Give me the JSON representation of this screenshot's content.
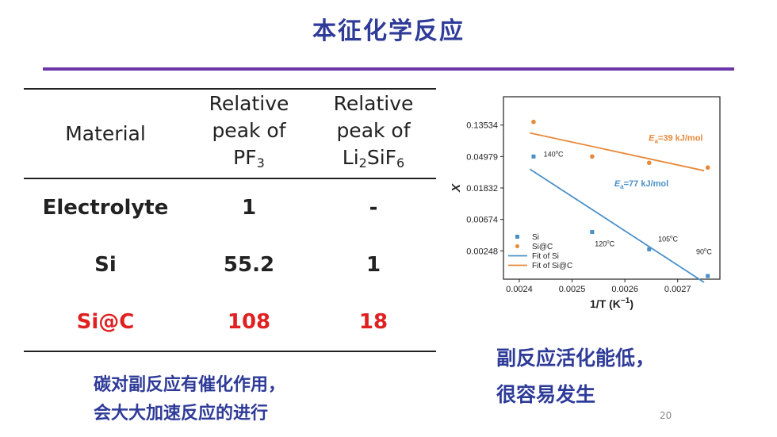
{
  "slide": {
    "title": "本征化学反应",
    "page_number": "20",
    "colors": {
      "title": "#2e3b98",
      "rule": "#6b36a7",
      "highlight": "#e02020"
    }
  },
  "table": {
    "headers": [
      {
        "lines": [
          "Material"
        ]
      },
      {
        "lines": [
          "Relative",
          "peak of",
          "PF",
          "3"
        ]
      },
      {
        "lines": [
          "Relative",
          "peak of",
          "Li",
          "2",
          "SiF",
          "6"
        ]
      }
    ],
    "rows": [
      {
        "material": "Electrolyte",
        "pf3": "1",
        "li2sif6": "-"
      },
      {
        "material": "Si",
        "pf3": "55.2",
        "li2sif6": "1"
      },
      {
        "material": "Si@C",
        "pf3": "108",
        "li2sif6": "18"
      }
    ]
  },
  "notes": {
    "left": [
      "碳对副反应有催化作用，",
      "会大大加速反应的进行"
    ],
    "right": [
      "副反应活化能低，",
      "很容易发生"
    ]
  },
  "chart_data": {
    "type": "scatter",
    "xlabel": "1/T (K",
    "xlabel_sup": "−1",
    "xlabel_close": ")",
    "ylabel": "X",
    "yscale": "log",
    "xlim": [
      0.00237,
      0.00278
    ],
    "x_ticks": [
      0.0024,
      0.0025,
      0.0026,
      0.0027
    ],
    "x_tick_labels": [
      "0.0024",
      "0.0025",
      "0.0026",
      "0.0027"
    ],
    "y_ticks": [
      0.13534,
      0.04979,
      0.01832,
      0.00674,
      0.00248
    ],
    "y_tick_labels": [
      "0.13534",
      "0.04979",
      "0.01832",
      "0.00674",
      "0.00248"
    ],
    "ylim_ln": [
      -6.9,
      -1.1
    ],
    "legend": {
      "position": "bottom-left",
      "entries": [
        "Si",
        "Si@C",
        "Fit of Si",
        "Fit of Si@C"
      ]
    },
    "series": [
      {
        "name": "Si",
        "color": "#4a90c8",
        "marker": "square",
        "x": [
          0.002427,
          0.002538,
          0.002646,
          0.002757
        ],
        "y_ln": [
          -3.0,
          -5.4,
          -5.95,
          -6.8
        ]
      },
      {
        "name": "Si@C",
        "color": "#e8893a",
        "marker": "circle",
        "x": [
          0.002427,
          0.002538,
          0.002646,
          0.002757
        ],
        "y_ln": [
          -1.9,
          -3.0,
          -3.2,
          -3.35
        ]
      },
      {
        "name": "Fit of Si",
        "color": "#4a90c8",
        "type": "line",
        "x": [
          0.00242,
          0.00275
        ],
        "y_ln": [
          -3.4,
          -7.0
        ]
      },
      {
        "name": "Fit of Si@C",
        "color": "#e8893a",
        "type": "line",
        "x": [
          0.00242,
          0.00275
        ],
        "y_ln": [
          -2.25,
          -3.45
        ]
      }
    ],
    "annotations": {
      "ea_sic": {
        "prefix": "E",
        "sub": "a",
        "text": "=39 kJ/mol",
        "color": "#e8893a",
        "x": 0.002645,
        "y_ln": -2.5
      },
      "ea_si": {
        "prefix": "E",
        "sub": "a",
        "text": "=77 kJ/mol",
        "color": "#4a90c8",
        "x": 0.00258,
        "y_ln": -3.95
      },
      "temps": [
        {
          "label": "140",
          "unit": "C",
          "x": 0.002446,
          "y_ln": -3.0
        },
        {
          "label": "120",
          "unit": "C",
          "x": 0.002543,
          "y_ln": -5.85
        },
        {
          "label": "105",
          "unit": "C",
          "x": 0.002663,
          "y_ln": -5.7
        },
        {
          "label": "90",
          "unit": "C",
          "x": 0.002735,
          "y_ln": -6.1
        }
      ]
    }
  }
}
